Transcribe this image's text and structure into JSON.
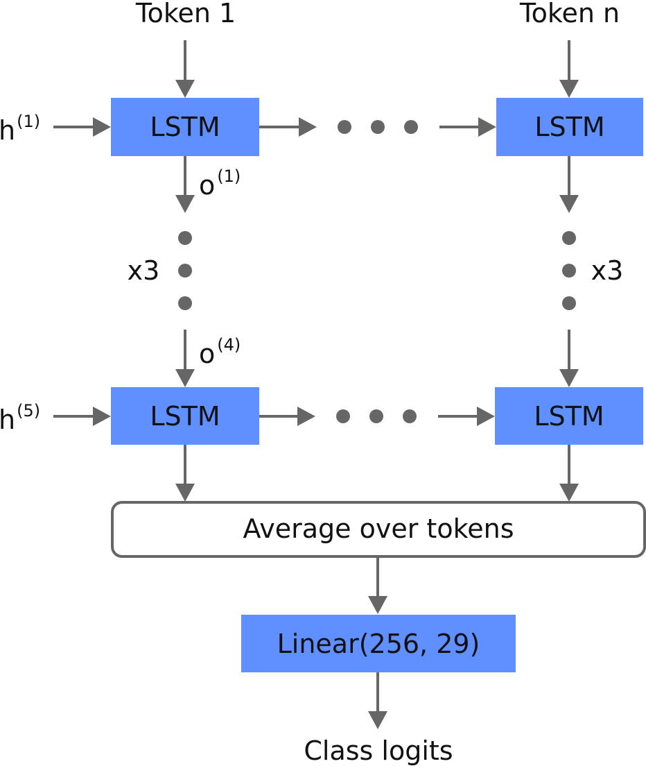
{
  "inputs": {
    "token_first": "Token 1",
    "token_last": "Token n"
  },
  "nodes": {
    "lstm_top_left": "LSTM",
    "lstm_top_right": "LSTM",
    "lstm_bottom_left": "LSTM",
    "lstm_bottom_right": "LSTM",
    "average": "Average over tokens",
    "linear": "Linear(256, 29)"
  },
  "hidden_states": {
    "first": {
      "base": "h",
      "sup": "(1)"
    },
    "last": {
      "base": "h",
      "sup": "(5)"
    }
  },
  "outputs": {
    "first": {
      "base": "o",
      "sup": "(1)"
    },
    "last": {
      "base": "o",
      "sup": "(4)"
    }
  },
  "repeat": {
    "left": "x3",
    "right": "x3"
  },
  "output_label": "Class logits",
  "colors": {
    "lstm_fill": "#6090ff",
    "linear_fill": "#6090ff",
    "average_fill": "#ffffff",
    "edge": "#666666",
    "text": "#111111"
  }
}
